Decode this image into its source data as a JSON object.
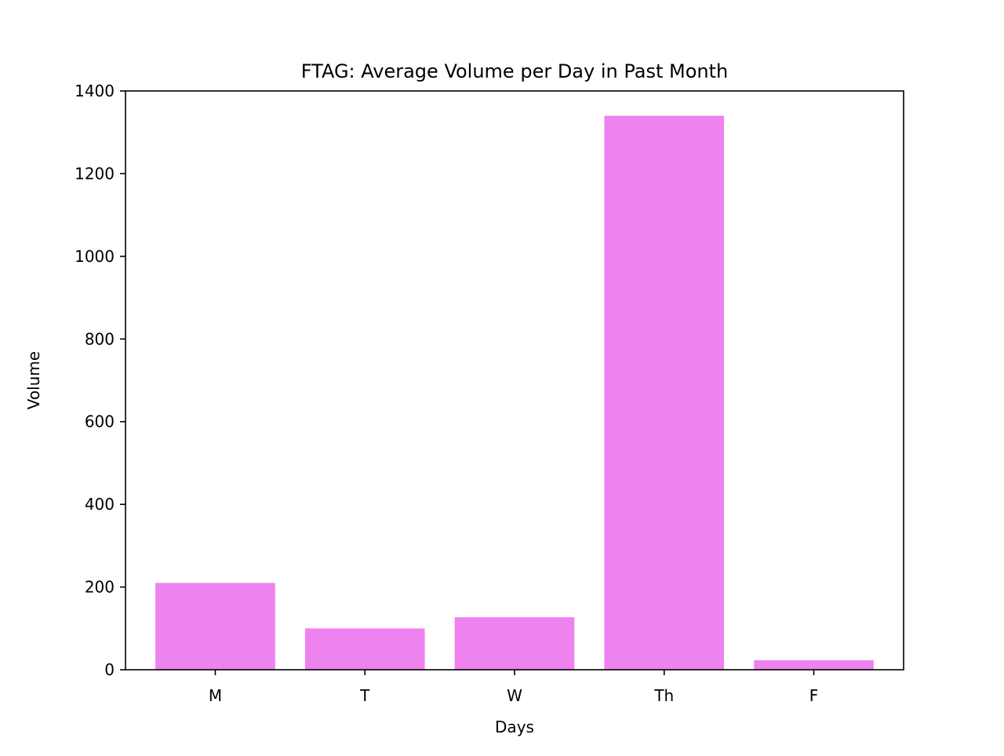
{
  "chart_data": {
    "type": "bar",
    "title": "FTAG: Average Volume per Day in Past Month",
    "xlabel": "Days",
    "ylabel": "Volume",
    "categories": [
      "M",
      "T",
      "W",
      "Th",
      "F"
    ],
    "values": [
      210,
      100,
      127,
      1340,
      23
    ],
    "ylim": [
      0,
      1400
    ],
    "yticks": [
      0,
      200,
      400,
      600,
      800,
      1000,
      1200,
      1400
    ],
    "bar_color": "#ee82ee",
    "grid": false,
    "legend": "none"
  }
}
